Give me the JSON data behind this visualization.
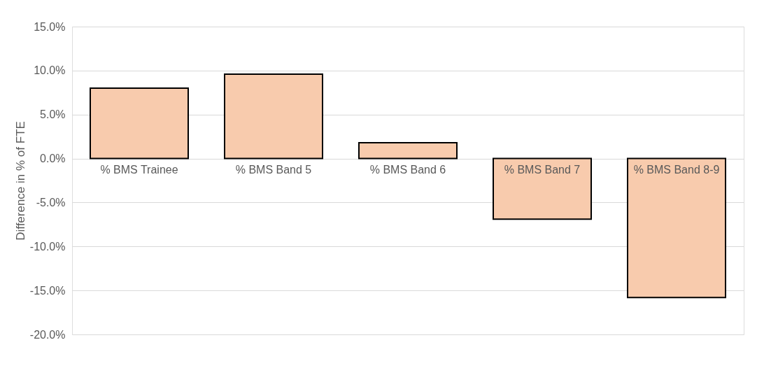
{
  "chart_data": {
    "type": "bar",
    "ylabel": "Difference in % of FTE",
    "categories": [
      "% BMS Trainee",
      "% BMS Band 5",
      "% BMS Band 6",
      "% BMS Band 7",
      "% BMS Band 8-9"
    ],
    "values": [
      8.0,
      9.6,
      1.8,
      -6.9,
      -15.8
    ],
    "color": "#f8cbad",
    "ylim": [
      -20,
      15
    ],
    "yticks": [
      {
        "value": -20,
        "label": "-20.0%"
      },
      {
        "value": -15,
        "label": "-15.0%"
      },
      {
        "value": -10,
        "label": "-10.0%"
      },
      {
        "value": -5,
        "label": "-5.0%"
      },
      {
        "value": 0,
        "label": "0.0%"
      },
      {
        "value": 5,
        "label": "5.0%"
      },
      {
        "value": 10,
        "label": "10.0%"
      },
      {
        "value": 15,
        "label": "15.0%"
      }
    ],
    "grid": "y"
  }
}
